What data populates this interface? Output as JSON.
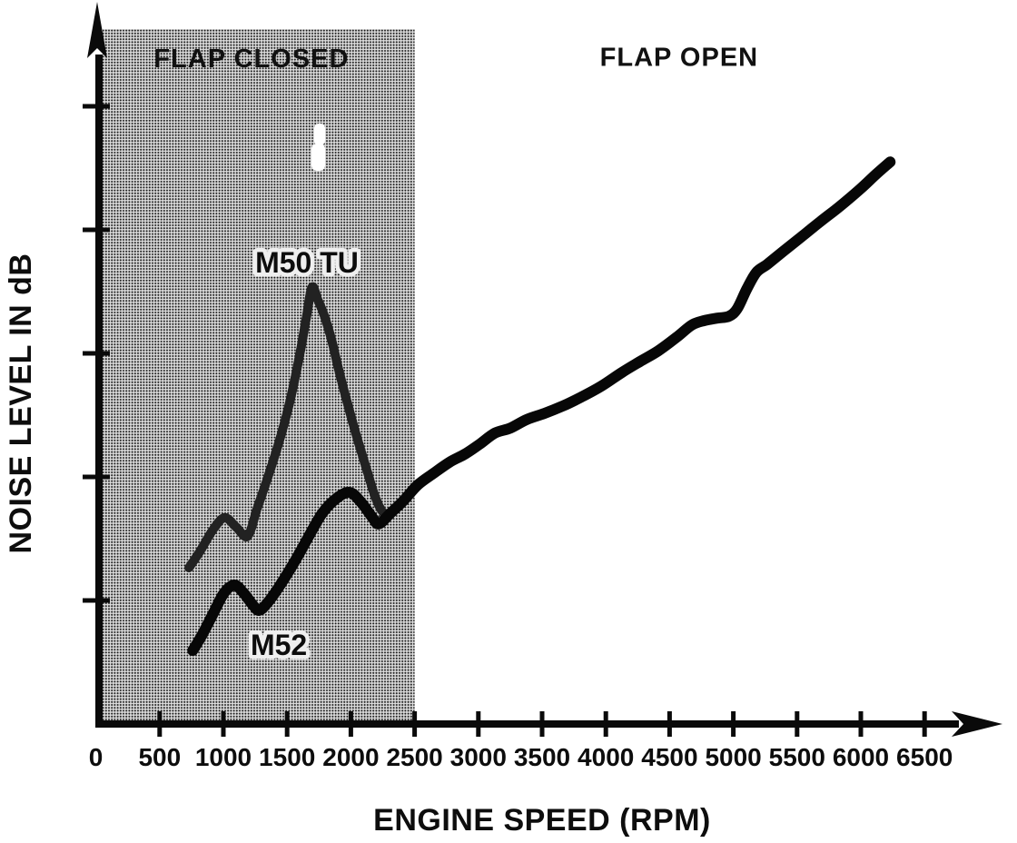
{
  "colors": {
    "background": "#ffffff",
    "ink": "#0a0a0a",
    "shade_background": "#dedede",
    "shade_dot": "#1a1a1a",
    "scan_artifact": "#ffffff"
  },
  "chart_data": {
    "type": "line",
    "title": "",
    "xlabel": "ENGINE SPEED (RPM)",
    "ylabel": "NOISE LEVEL IN dB",
    "xlim": [
      0,
      6900
    ],
    "ylim": [
      0,
      100
    ],
    "grid": false,
    "x_ticks": [
      0,
      500,
      1000,
      1500,
      2000,
      2500,
      3000,
      3500,
      4000,
      4500,
      5000,
      5500,
      6000,
      6500
    ],
    "x_tick_labels": [
      "0",
      "500",
      "1000",
      "1500",
      "2000",
      "2500",
      "3000",
      "3500",
      "4000",
      "4500",
      "5000",
      "5500",
      "6000",
      "6500"
    ],
    "y_ticks": [
      20,
      40,
      60,
      80,
      100
    ],
    "y_tick_labels": [],
    "y_axis_numeric_labels_shown": false,
    "notes": "Y axis has unlabeled tick marks; noise levels are relative units (0-100 of axis height) read from the drawing.",
    "regions": [
      {
        "label": "FLAP CLOSED",
        "rpm_start": 0,
        "rpm_end": 2500,
        "shaded": true,
        "label_rpm": 1220,
        "label_level": 107.8
      },
      {
        "label": "FLAP OPEN",
        "rpm_start": 2500,
        "rpm_end": 6500,
        "shaded": false,
        "label_rpm": 4575,
        "label_level": 108.0
      }
    ],
    "series": [
      {
        "name": "M50 TU",
        "color": "#222222",
        "points": [
          [
            730,
            25.3
          ],
          [
            815,
            27.9
          ],
          [
            920,
            31.5
          ],
          [
            1010,
            33.4
          ],
          [
            1100,
            31.9
          ],
          [
            1190,
            30.4
          ],
          [
            1265,
            34.9
          ],
          [
            1350,
            40.0
          ],
          [
            1440,
            45.9
          ],
          [
            1525,
            52.5
          ],
          [
            1600,
            59.9
          ],
          [
            1650,
            65.7
          ],
          [
            1695,
            70.7
          ],
          [
            1740,
            68.7
          ],
          [
            1790,
            66.2
          ],
          [
            1850,
            62.1
          ],
          [
            1910,
            56.9
          ],
          [
            1975,
            51.8
          ],
          [
            2045,
            46.6
          ],
          [
            2120,
            41.5
          ],
          [
            2185,
            37.1
          ],
          [
            2240,
            34.6
          ],
          [
            2295,
            33.7
          ]
        ]
      },
      {
        "name": "M52",
        "color": "#070707",
        "points": [
          [
            760,
            11.9
          ],
          [
            830,
            14.3
          ],
          [
            920,
            17.9
          ],
          [
            1005,
            21.2
          ],
          [
            1085,
            22.5
          ],
          [
            1155,
            21.3
          ],
          [
            1230,
            19.3
          ],
          [
            1280,
            18.4
          ],
          [
            1350,
            19.7
          ],
          [
            1455,
            22.8
          ],
          [
            1565,
            26.5
          ],
          [
            1670,
            30.4
          ],
          [
            1775,
            34.1
          ],
          [
            1885,
            36.5
          ],
          [
            1990,
            37.5
          ],
          [
            2080,
            35.9
          ],
          [
            2170,
            33.4
          ],
          [
            2220,
            32.4
          ],
          [
            2310,
            34.1
          ],
          [
            2415,
            36.2
          ],
          [
            2525,
            38.7
          ],
          [
            2650,
            40.6
          ],
          [
            2775,
            42.4
          ],
          [
            2895,
            43.7
          ],
          [
            3010,
            45.3
          ],
          [
            3130,
            47.1
          ],
          [
            3250,
            47.9
          ],
          [
            3380,
            49.3
          ],
          [
            3520,
            50.3
          ],
          [
            3665,
            51.5
          ],
          [
            3805,
            52.9
          ],
          [
            3965,
            54.7
          ],
          [
            4125,
            56.9
          ],
          [
            4270,
            58.7
          ],
          [
            4410,
            60.4
          ],
          [
            4555,
            62.6
          ],
          [
            4675,
            64.6
          ],
          [
            4770,
            65.3
          ],
          [
            4875,
            65.7
          ],
          [
            4965,
            66.0
          ],
          [
            5030,
            67.2
          ],
          [
            5105,
            70.4
          ],
          [
            5180,
            73.1
          ],
          [
            5265,
            74.4
          ],
          [
            5390,
            76.5
          ],
          [
            5530,
            78.8
          ],
          [
            5680,
            81.3
          ],
          [
            5835,
            83.8
          ],
          [
            5995,
            86.6
          ],
          [
            6120,
            89.0
          ],
          [
            6230,
            91.0
          ]
        ]
      }
    ],
    "annotations": [
      {
        "text": "M50 TU",
        "rpm": 1655,
        "level": 74.7
      },
      {
        "text": "M52",
        "rpm": 1435,
        "level": 12.8
      }
    ]
  }
}
